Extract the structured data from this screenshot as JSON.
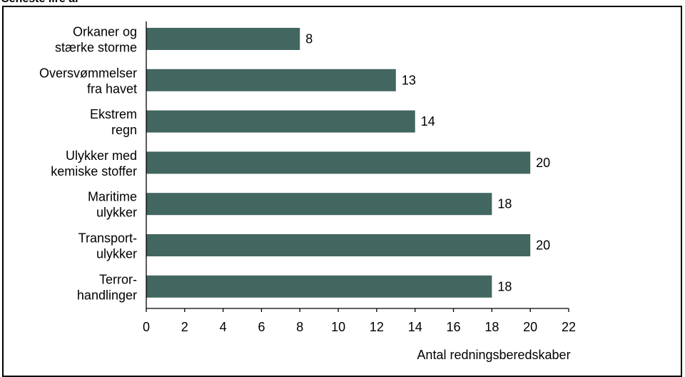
{
  "page": {
    "title_fragment": "Seneste lire ar"
  },
  "colors": {
    "bar": "#426660",
    "axis": "#000000",
    "frame": "#000000"
  },
  "chart_data": {
    "type": "bar",
    "orientation": "horizontal",
    "categories": [
      [
        "Orkaner og",
        "stærke storme"
      ],
      [
        "Oversvømmelser",
        "fra havet"
      ],
      [
        "Ekstrem",
        "regn"
      ],
      [
        "Ulykker med",
        "kemiske stoffer"
      ],
      [
        "Maritime",
        "ulykker"
      ],
      [
        "Transport-",
        "ulykker"
      ],
      [
        "Terror-",
        "handlinger"
      ]
    ],
    "values": [
      8,
      13,
      14,
      20,
      18,
      20,
      18
    ],
    "data_labels": [
      "8",
      "13",
      "14",
      "20",
      "18",
      "20",
      "18"
    ],
    "xlabel": "Antal redningsberedskaber",
    "ylabel": "",
    "xlim": [
      0,
      22
    ],
    "xticks": [
      0,
      2,
      4,
      6,
      8,
      10,
      12,
      14,
      16,
      18,
      20,
      22
    ],
    "grid": false,
    "legend": "none"
  }
}
